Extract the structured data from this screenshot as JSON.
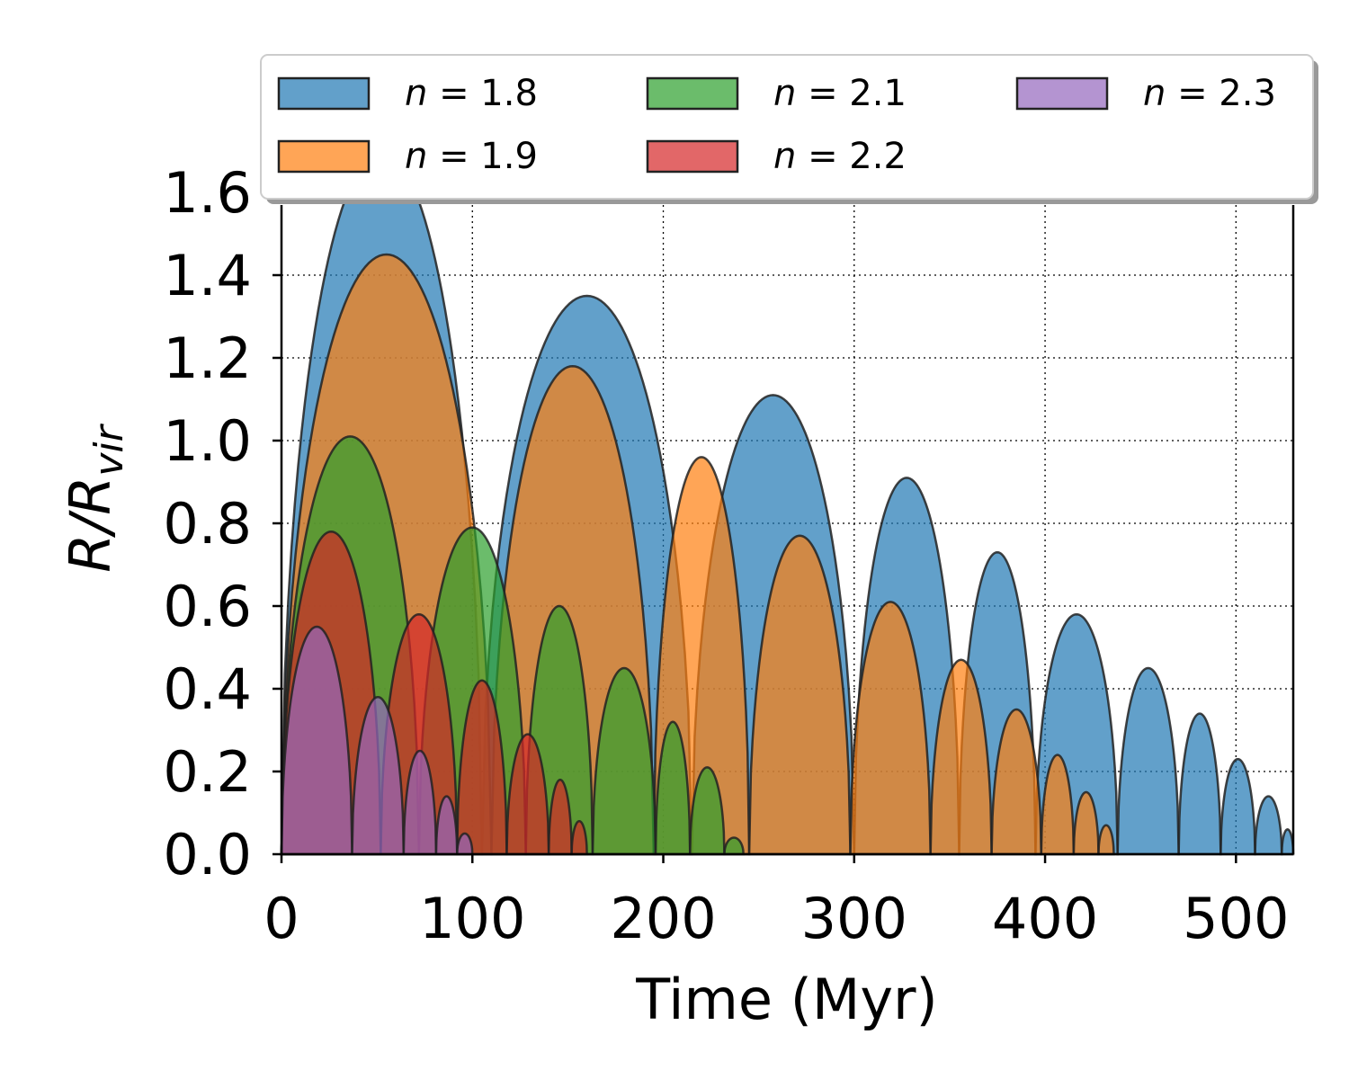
{
  "chart_data": {
    "type": "area",
    "xlabel": "Time (Myr)",
    "ylabel": "R/R_vir",
    "ylabel_parts": {
      "main": "R/R",
      "sub": "vir"
    },
    "xlim": [
      0,
      530
    ],
    "ylim": [
      0,
      1.6
    ],
    "xticks": [
      "0",
      "100",
      "200",
      "300",
      "400",
      "500"
    ],
    "xtick_values": [
      0,
      100,
      200,
      300,
      400,
      500
    ],
    "yticks": [
      "0.0",
      "0.2",
      "0.4",
      "0.6",
      "0.8",
      "1.0",
      "1.2",
      "1.4",
      "1.6"
    ],
    "ytick_values": [
      0,
      0.2,
      0.4,
      0.6,
      0.8,
      1.0,
      1.2,
      1.4,
      1.6
    ],
    "grid": true,
    "legend": {
      "placement": "top",
      "columns": 3
    },
    "series": [
      {
        "name": "n = 1.8",
        "legend_var": "n",
        "legend_val": "1.8",
        "color": "#1f77b4",
        "bounces": [
          [
            0,
            105
          ],
          [
            105,
            215
          ],
          [
            215,
            300
          ],
          [
            300,
            355
          ],
          [
            355,
            395
          ],
          [
            395,
            438
          ],
          [
            438,
            470
          ],
          [
            470,
            492
          ],
          [
            492,
            510
          ],
          [
            510,
            524
          ],
          [
            524,
            530
          ]
        ],
        "peaks": [
          1.7,
          1.35,
          1.11,
          0.91,
          0.73,
          0.58,
          0.45,
          0.34,
          0.23,
          0.14,
          0.06
        ]
      },
      {
        "name": "n = 1.9",
        "legend_var": "n",
        "legend_val": "1.9",
        "color": "#ff7f0e",
        "bounces": [
          [
            0,
            110
          ],
          [
            110,
            195
          ],
          [
            195,
            245
          ],
          [
            245,
            298
          ],
          [
            298,
            340
          ],
          [
            340,
            372
          ],
          [
            372,
            398
          ],
          [
            398,
            415
          ],
          [
            415,
            428
          ],
          [
            428,
            436
          ]
        ],
        "peaks": [
          1.45,
          1.18,
          0.96,
          0.77,
          0.61,
          0.47,
          0.35,
          0.24,
          0.15,
          0.07
        ]
      },
      {
        "name": "n = 2.1",
        "legend_var": "n",
        "legend_val": "2.1",
        "color": "#2ca02c",
        "bounces": [
          [
            0,
            72
          ],
          [
            72,
            128
          ],
          [
            128,
            163
          ],
          [
            163,
            196
          ],
          [
            196,
            214
          ],
          [
            214,
            232
          ],
          [
            232,
            242
          ]
        ],
        "peaks": [
          1.01,
          0.79,
          0.6,
          0.45,
          0.32,
          0.21,
          0.04
        ]
      },
      {
        "name": "n = 2.2",
        "legend_var": "n",
        "legend_val": "2.2",
        "color": "#d62728",
        "bounces": [
          [
            0,
            52
          ],
          [
            52,
            92
          ],
          [
            92,
            118
          ],
          [
            118,
            140
          ],
          [
            140,
            152
          ],
          [
            152,
            160
          ]
        ],
        "peaks": [
          0.78,
          0.58,
          0.42,
          0.29,
          0.18,
          0.08
        ]
      },
      {
        "name": "n = 2.3",
        "legend_var": "n",
        "legend_val": "2.3",
        "color": "#9467bd",
        "bounces": [
          [
            0,
            37
          ],
          [
            37,
            64
          ],
          [
            64,
            81
          ],
          [
            81,
            92
          ],
          [
            92,
            100
          ]
        ],
        "peaks": [
          0.55,
          0.38,
          0.25,
          0.14,
          0.05
        ]
      }
    ]
  }
}
